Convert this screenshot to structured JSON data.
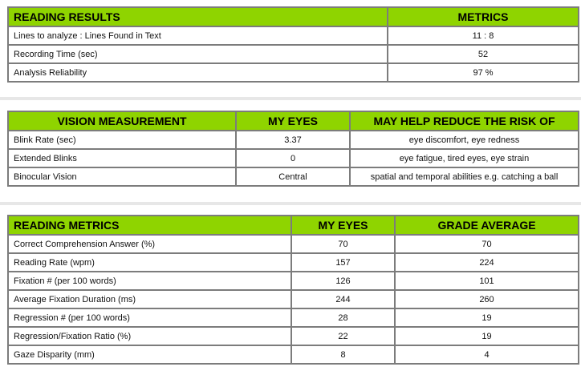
{
  "reading_results": {
    "headers": [
      "READING RESULTS",
      "METRICS"
    ],
    "rows": [
      {
        "label": "Lines to analyze : Lines Found in Text",
        "value": "11 : 8"
      },
      {
        "label": "Recording Time (sec)",
        "value": "52"
      },
      {
        "label": "Analysis Reliability",
        "value": "97 %"
      }
    ]
  },
  "vision_measurement": {
    "headers": [
      "VISION MEASUREMENT",
      "MY EYES",
      "MAY HELP REDUCE THE RISK OF"
    ],
    "rows": [
      {
        "label": "Blink Rate (sec)",
        "my_eyes": "3.37",
        "risk": "eye discomfort, eye redness"
      },
      {
        "label": "Extended Blinks",
        "my_eyes": "0",
        "risk": "eye fatigue, tired eyes, eye strain"
      },
      {
        "label": "Binocular Vision",
        "my_eyes": "Central",
        "risk": "spatial and temporal abilities e.g. catching a ball"
      }
    ]
  },
  "reading_metrics": {
    "headers": [
      "READING METRICS",
      "MY EYES",
      "GRADE AVERAGE"
    ],
    "rows": [
      {
        "label": "Correct Comprehension Answer (%)",
        "my_eyes": "70",
        "grade_avg": "70"
      },
      {
        "label": "Reading Rate (wpm)",
        "my_eyes": "157",
        "grade_avg": "224"
      },
      {
        "label": "Fixation # (per 100 words)",
        "my_eyes": "126",
        "grade_avg": "101"
      },
      {
        "label": "Average Fixation Duration (ms)",
        "my_eyes": "244",
        "grade_avg": "260"
      },
      {
        "label": "Regression # (per 100 words)",
        "my_eyes": "28",
        "grade_avg": "19"
      },
      {
        "label": "Regression/Fixation Ratio (%)",
        "my_eyes": "22",
        "grade_avg": "19"
      },
      {
        "label": "Gaze Disparity (mm)",
        "my_eyes": "8",
        "grade_avg": "4"
      }
    ]
  },
  "colors": {
    "header_bg": "#8fd400",
    "border": "#7c7c7c",
    "separator": "#e7e7e7"
  }
}
